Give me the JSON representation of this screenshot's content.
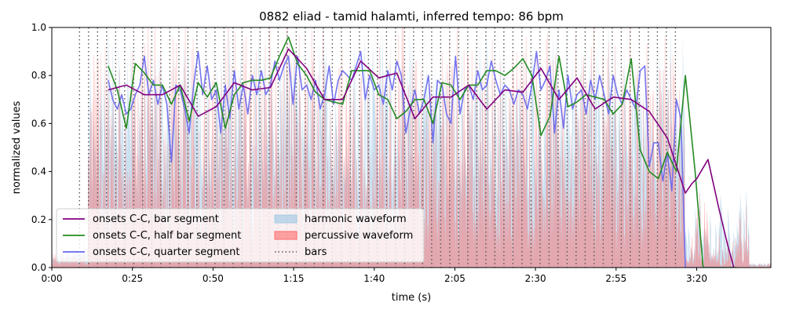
{
  "chart_data": {
    "type": "line",
    "title": "0882 eliad - tamid halamti, inferred tempo: 86 bpm",
    "xlabel": "time (s)",
    "ylabel": "normalized values",
    "xlim": [
      0,
      223
    ],
    "ylim": [
      0,
      1.0
    ],
    "xticks": [
      {
        "value": 0,
        "label": "0:00"
      },
      {
        "value": 25,
        "label": "0:25"
      },
      {
        "value": 50,
        "label": "0:50"
      },
      {
        "value": 75,
        "label": "1:15"
      },
      {
        "value": 100,
        "label": "1:40"
      },
      {
        "value": 125,
        "label": "2:05"
      },
      {
        "value": 150,
        "label": "2:30"
      },
      {
        "value": 175,
        "label": "2:55"
      },
      {
        "value": 200,
        "label": "3:20"
      }
    ],
    "yticks": [
      0.0,
      0.2,
      0.4,
      0.6,
      0.8,
      1.0
    ],
    "ytick_labels": [
      "0.0",
      "0.2",
      "0.4",
      "0.6",
      "0.8",
      "1.0"
    ],
    "grid": false,
    "legend_position": "lower-left",
    "legend_labels": [
      "onsets C-C, bar segment",
      "onsets C-C, half bar segment",
      "onsets C-C, quarter segment",
      "harmonic waveform",
      "percussive waveform",
      "bars"
    ],
    "series": [
      {
        "name": "onsets C-C, bar segment",
        "color": "#800080",
        "x": [
          17.5,
          23.1,
          28.7,
          34.3,
          39.8,
          45.4,
          51.0,
          56.6,
          62.2,
          67.8,
          73.4,
          79.0,
          84.6,
          90.2,
          95.8,
          101.4,
          107.0,
          112.6,
          118.2,
          123.8,
          129.3,
          134.9,
          140.5,
          146.1,
          151.7,
          157.3,
          162.9,
          168.5,
          174.1,
          179.7,
          185.3,
          190.9,
          196.5,
          198.5,
          200.0,
          203.5,
          206.8,
          209.5,
          211.5
        ],
        "y": [
          0.74,
          0.76,
          0.72,
          0.72,
          0.76,
          0.63,
          0.67,
          0.77,
          0.74,
          0.75,
          0.91,
          0.83,
          0.7,
          0.7,
          0.86,
          0.79,
          0.81,
          0.62,
          0.71,
          0.71,
          0.76,
          0.66,
          0.74,
          0.73,
          0.83,
          0.7,
          0.79,
          0.66,
          0.71,
          0.7,
          0.65,
          0.54,
          0.31,
          0.35,
          0.37,
          0.45,
          0.25,
          0.1,
          0.0
        ]
      },
      {
        "name": "onsets C-C, half bar segment",
        "color": "#228B22",
        "x": [
          17.5,
          20.3,
          23.1,
          25.9,
          28.7,
          31.5,
          34.3,
          37.1,
          39.8,
          42.6,
          45.4,
          48.2,
          51.0,
          53.8,
          56.6,
          59.4,
          62.2,
          65.0,
          67.8,
          70.6,
          73.4,
          76.2,
          79.0,
          81.8,
          84.6,
          87.4,
          90.2,
          93.0,
          95.8,
          98.6,
          101.4,
          104.2,
          107.0,
          109.8,
          112.6,
          115.4,
          118.2,
          121.0,
          123.8,
          126.6,
          129.3,
          132.1,
          134.9,
          137.7,
          140.5,
          143.3,
          146.1,
          148.9,
          151.7,
          154.5,
          157.3,
          160.1,
          162.9,
          165.7,
          168.5,
          171.3,
          174.1,
          176.9,
          179.7,
          182.5,
          185.3,
          188.1,
          190.9,
          193.7,
          196.5,
          199.5,
          202.0,
          204.5,
          207.0,
          209.0,
          212.5
        ],
        "y": [
          0.84,
          0.74,
          0.58,
          0.85,
          0.81,
          0.76,
          0.76,
          0.68,
          0.76,
          0.61,
          0.77,
          0.71,
          0.77,
          0.58,
          0.72,
          0.77,
          0.78,
          0.78,
          0.79,
          0.88,
          0.96,
          0.85,
          0.8,
          0.73,
          0.7,
          0.69,
          0.68,
          0.82,
          0.82,
          0.82,
          0.72,
          0.7,
          0.62,
          0.65,
          0.7,
          0.7,
          0.6,
          0.77,
          0.76,
          0.7,
          0.76,
          0.76,
          0.82,
          0.82,
          0.8,
          0.83,
          0.87,
          0.8,
          0.55,
          0.63,
          0.88,
          0.67,
          0.69,
          0.72,
          0.71,
          0.7,
          0.64,
          0.68,
          0.87,
          0.49,
          0.4,
          0.37,
          0.48,
          0.4,
          0.8,
          0.4,
          0.0,
          0.0,
          0.0,
          0.0,
          0.0
        ]
      },
      {
        "name": "onsets C-C, quarter segment",
        "color": "#6666EE",
        "x": [
          17.5,
          18.9,
          20.3,
          21.7,
          23.1,
          24.5,
          25.9,
          27.3,
          28.7,
          30.1,
          31.5,
          32.9,
          34.3,
          35.7,
          37.1,
          38.5,
          39.8,
          41.2,
          42.6,
          44.0,
          45.4,
          46.8,
          48.2,
          49.6,
          51.0,
          52.4,
          53.8,
          55.2,
          56.6,
          58.0,
          59.4,
          60.8,
          62.2,
          63.6,
          65.0,
          66.4,
          67.8,
          69.2,
          70.6,
          72.0,
          73.4,
          74.8,
          76.2,
          77.6,
          79.0,
          80.4,
          81.8,
          83.2,
          84.6,
          86.0,
          87.4,
          88.8,
          90.2,
          91.6,
          93.0,
          94.4,
          95.8,
          97.2,
          98.6,
          100.0,
          101.4,
          102.8,
          104.2,
          105.6,
          107.0,
          108.4,
          109.8,
          111.2,
          112.6,
          114.0,
          115.4,
          116.8,
          118.2,
          119.6,
          121.0,
          122.4,
          123.8,
          125.2,
          126.6,
          128.0,
          129.3,
          130.7,
          132.1,
          133.5,
          134.9,
          136.3,
          137.7,
          139.1,
          140.5,
          141.9,
          143.3,
          144.7,
          146.1,
          147.5,
          148.9,
          150.3,
          151.7,
          153.1,
          154.5,
          155.9,
          157.3,
          158.7,
          160.1,
          161.5,
          162.9,
          164.3,
          165.7,
          167.1,
          168.5,
          169.9,
          171.3,
          172.7,
          174.1,
          175.5,
          176.9,
          178.3,
          179.7,
          181.1,
          182.5,
          183.9,
          185.3,
          186.7,
          188.1,
          189.5,
          190.9,
          192.3,
          193.7,
          195.1,
          196.5,
          198.0,
          199.5,
          201.0,
          202.5,
          204.0,
          205.5,
          207.0,
          208.5,
          210.0,
          211.5
        ],
        "y": [
          0.78,
          0.7,
          0.66,
          0.72,
          0.64,
          0.66,
          0.72,
          0.76,
          0.88,
          0.72,
          0.78,
          0.68,
          0.76,
          0.68,
          0.44,
          0.76,
          0.74,
          0.66,
          0.56,
          0.76,
          0.9,
          0.72,
          0.84,
          0.7,
          0.74,
          0.56,
          0.76,
          0.62,
          0.82,
          0.66,
          0.76,
          0.64,
          0.8,
          0.72,
          0.82,
          0.72,
          0.76,
          0.86,
          0.78,
          0.84,
          0.88,
          0.68,
          0.88,
          0.74,
          0.76,
          0.7,
          0.78,
          0.66,
          0.72,
          0.84,
          0.68,
          0.78,
          0.82,
          0.8,
          0.78,
          0.84,
          0.9,
          0.7,
          0.8,
          0.74,
          0.76,
          0.68,
          0.82,
          0.74,
          0.86,
          0.8,
          0.56,
          0.66,
          0.74,
          0.64,
          0.7,
          0.8,
          0.52,
          0.78,
          0.76,
          0.64,
          0.6,
          0.88,
          0.64,
          0.74,
          0.76,
          0.7,
          0.82,
          0.74,
          0.76,
          0.86,
          0.78,
          0.72,
          0.76,
          0.74,
          0.68,
          0.74,
          0.72,
          0.66,
          0.76,
          0.9,
          0.74,
          0.78,
          0.84,
          0.56,
          0.74,
          0.58,
          0.8,
          0.66,
          0.72,
          0.74,
          0.64,
          0.78,
          0.7,
          0.8,
          0.72,
          0.64,
          0.8,
          0.72,
          0.68,
          0.74,
          0.7,
          0.66,
          0.82,
          0.84,
          0.42,
          0.52,
          0.52,
          0.36,
          0.48,
          0.32,
          0.7,
          0.62,
          0.0,
          0.0,
          0.0,
          0.0,
          0.0,
          0.0,
          0.0,
          0.0,
          0.0,
          0.0,
          0.0
        ]
      }
    ],
    "bars": {
      "name": "bars",
      "color": "#555555",
      "style": "dotted",
      "positions": [
        8.6,
        11.4,
        14.2,
        17.0,
        19.8,
        22.6,
        25.4,
        28.2,
        31.0,
        33.8,
        36.6,
        39.4,
        42.2,
        45.0,
        47.8,
        50.6,
        53.4,
        56.2,
        59.0,
        61.8,
        64.6,
        67.4,
        70.2,
        73.0,
        75.8,
        78.6,
        81.4,
        84.2,
        87.0,
        89.8,
        92.6,
        95.4,
        98.2,
        101.0,
        103.8,
        106.6,
        109.4,
        112.2,
        115.0,
        117.8,
        120.6,
        123.4,
        126.2,
        129.0,
        131.8,
        134.6,
        137.4,
        140.2,
        143.0,
        145.8,
        148.6,
        151.4,
        154.2,
        157.0,
        159.8,
        162.6,
        165.4,
        168.2,
        171.0,
        173.8,
        176.6,
        179.4,
        182.2,
        185.0,
        187.8,
        190.6,
        193.4
      ]
    },
    "waveforms": {
      "harmonic": {
        "name": "harmonic waveform",
        "color": "#a8cce4",
        "opacity": 0.6
      },
      "percussive": {
        "name": "percussive waveform",
        "color": "#ff6b6b",
        "opacity": 0.4
      }
    }
  }
}
